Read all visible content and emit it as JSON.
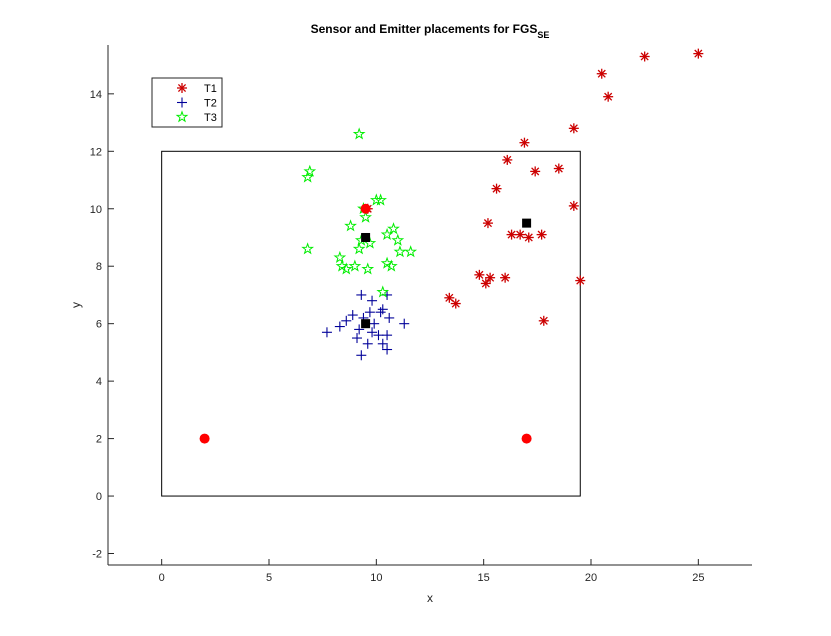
{
  "chart_data": {
    "type": "scatter",
    "title": "Sensor and Emitter placements for FGS",
    "title_subscript": "SE",
    "xlabel": "x",
    "ylabel": "y",
    "xlim": [
      -2.5,
      27.5
    ],
    "ylim": [
      -2.4,
      15.7
    ],
    "xticks": [
      0,
      5,
      10,
      15,
      20,
      25
    ],
    "yticks": [
      -2,
      0,
      2,
      4,
      6,
      8,
      10,
      12,
      14
    ],
    "grid": false,
    "legend": {
      "position": "top-left",
      "entries": [
        "T1",
        "T2",
        "T3"
      ]
    },
    "colors": {
      "T1": "#cc0000",
      "T2": "#000099",
      "T3": "#00ee00",
      "emitter": "#ff0000",
      "sensor": "#000000",
      "region": "#000000"
    },
    "region": {
      "x0": 0,
      "y0": 0,
      "x1": 19.5,
      "y1": 12
    },
    "series": [
      {
        "name": "T1",
        "marker": "asterisk",
        "points": [
          [
            25.0,
            15.4
          ],
          [
            22.5,
            15.3
          ],
          [
            20.5,
            14.7
          ],
          [
            20.8,
            13.9
          ],
          [
            19.2,
            12.8
          ],
          [
            16.9,
            12.3
          ],
          [
            16.1,
            11.7
          ],
          [
            17.4,
            11.3
          ],
          [
            18.5,
            11.4
          ],
          [
            15.6,
            10.7
          ],
          [
            19.2,
            10.1
          ],
          [
            15.2,
            9.5
          ],
          [
            16.7,
            9.1
          ],
          [
            16.3,
            9.1
          ],
          [
            17.1,
            9.0
          ],
          [
            17.7,
            9.1
          ],
          [
            14.8,
            7.7
          ],
          [
            15.3,
            7.6
          ],
          [
            16.0,
            7.6
          ],
          [
            15.1,
            7.4
          ],
          [
            19.5,
            7.5
          ],
          [
            13.4,
            6.9
          ],
          [
            13.7,
            6.7
          ],
          [
            17.8,
            6.1
          ],
          [
            9.6,
            10.0
          ]
        ]
      },
      {
        "name": "T2",
        "marker": "plus",
        "points": [
          [
            9.3,
            7.0
          ],
          [
            9.8,
            6.8
          ],
          [
            10.5,
            7.0
          ],
          [
            10.2,
            6.4
          ],
          [
            8.9,
            6.3
          ],
          [
            9.4,
            6.2
          ],
          [
            10.3,
            6.5
          ],
          [
            10.6,
            6.2
          ],
          [
            8.6,
            6.1
          ],
          [
            11.3,
            6.0
          ],
          [
            8.3,
            5.9
          ],
          [
            9.9,
            6.0
          ],
          [
            7.7,
            5.7
          ],
          [
            9.2,
            5.8
          ],
          [
            9.8,
            5.7
          ],
          [
            10.1,
            5.6
          ],
          [
            10.5,
            5.6
          ],
          [
            9.1,
            5.5
          ],
          [
            9.6,
            5.3
          ],
          [
            10.3,
            5.3
          ],
          [
            10.5,
            5.1
          ],
          [
            9.3,
            4.9
          ],
          [
            9.7,
            6.4
          ]
        ]
      },
      {
        "name": "T3",
        "marker": "pentagram",
        "points": [
          [
            9.2,
            12.6
          ],
          [
            6.9,
            11.3
          ],
          [
            6.8,
            11.1
          ],
          [
            10.0,
            10.3
          ],
          [
            10.2,
            10.3
          ],
          [
            9.4,
            10.0
          ],
          [
            9.5,
            9.7
          ],
          [
            8.8,
            9.4
          ],
          [
            10.8,
            9.3
          ],
          [
            10.5,
            9.1
          ],
          [
            9.3,
            8.9
          ],
          [
            11.0,
            8.9
          ],
          [
            9.7,
            8.8
          ],
          [
            6.8,
            8.6
          ],
          [
            9.2,
            8.6
          ],
          [
            11.1,
            8.5
          ],
          [
            11.6,
            8.5
          ],
          [
            8.3,
            8.3
          ],
          [
            8.4,
            8.0
          ],
          [
            8.6,
            7.9
          ],
          [
            9.0,
            8.0
          ],
          [
            9.6,
            7.9
          ],
          [
            10.5,
            8.1
          ],
          [
            10.7,
            8.0
          ],
          [
            10.3,
            7.1
          ]
        ]
      },
      {
        "name": "",
        "marker": "filled-circle",
        "points": [
          [
            2,
            2
          ],
          [
            17,
            2
          ],
          [
            9.5,
            10
          ]
        ]
      },
      {
        "name": "",
        "marker": "filled-square",
        "points": [
          [
            9.5,
            9.0
          ],
          [
            9.5,
            6.0
          ],
          [
            17.0,
            9.5
          ]
        ]
      }
    ]
  }
}
